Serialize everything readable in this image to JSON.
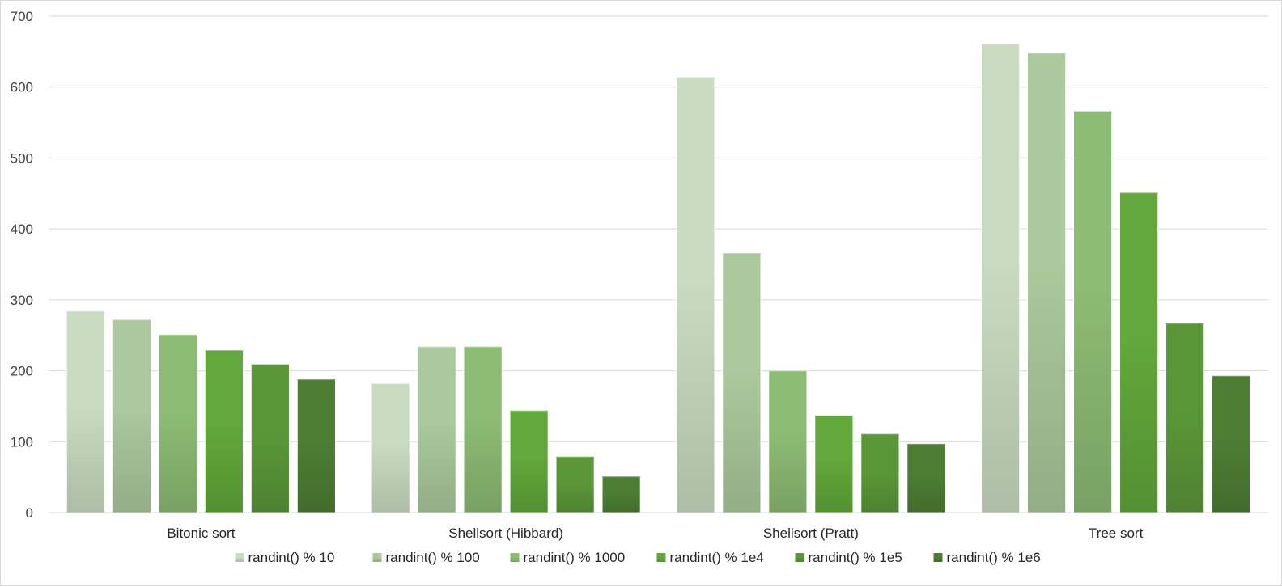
{
  "chart_data": {
    "type": "bar",
    "categories": [
      "Bitonic sort",
      "Shellsort (Hibbard)",
      "Shellsort (Pratt)",
      "Tree sort"
    ],
    "series": [
      {
        "name": "randint() % 10",
        "color": "#c9dcc1",
        "values": [
          284,
          182,
          614,
          661
        ]
      },
      {
        "name": "randint() % 100",
        "color": "#abc99c",
        "values": [
          272,
          234,
          366,
          648
        ]
      },
      {
        "name": "randint() % 1000",
        "color": "#8cbb73",
        "values": [
          251,
          234,
          200,
          566
        ]
      },
      {
        "name": "randint() % 1e4",
        "color": "#62a83a",
        "values": [
          229,
          144,
          137,
          451
        ]
      },
      {
        "name": "randint() % 1e5",
        "color": "#5b9739",
        "values": [
          209,
          79,
          111,
          267
        ]
      },
      {
        "name": "randint() % 1e6",
        "color": "#4d7e34",
        "values": [
          188,
          51,
          97,
          193
        ]
      }
    ],
    "ylim": [
      0,
      700
    ],
    "yticks": [
      0,
      100,
      200,
      300,
      400,
      500,
      600,
      700
    ],
    "title": "",
    "xlabel": "",
    "ylabel": "",
    "grid": true,
    "legend_position": "bottom"
  }
}
